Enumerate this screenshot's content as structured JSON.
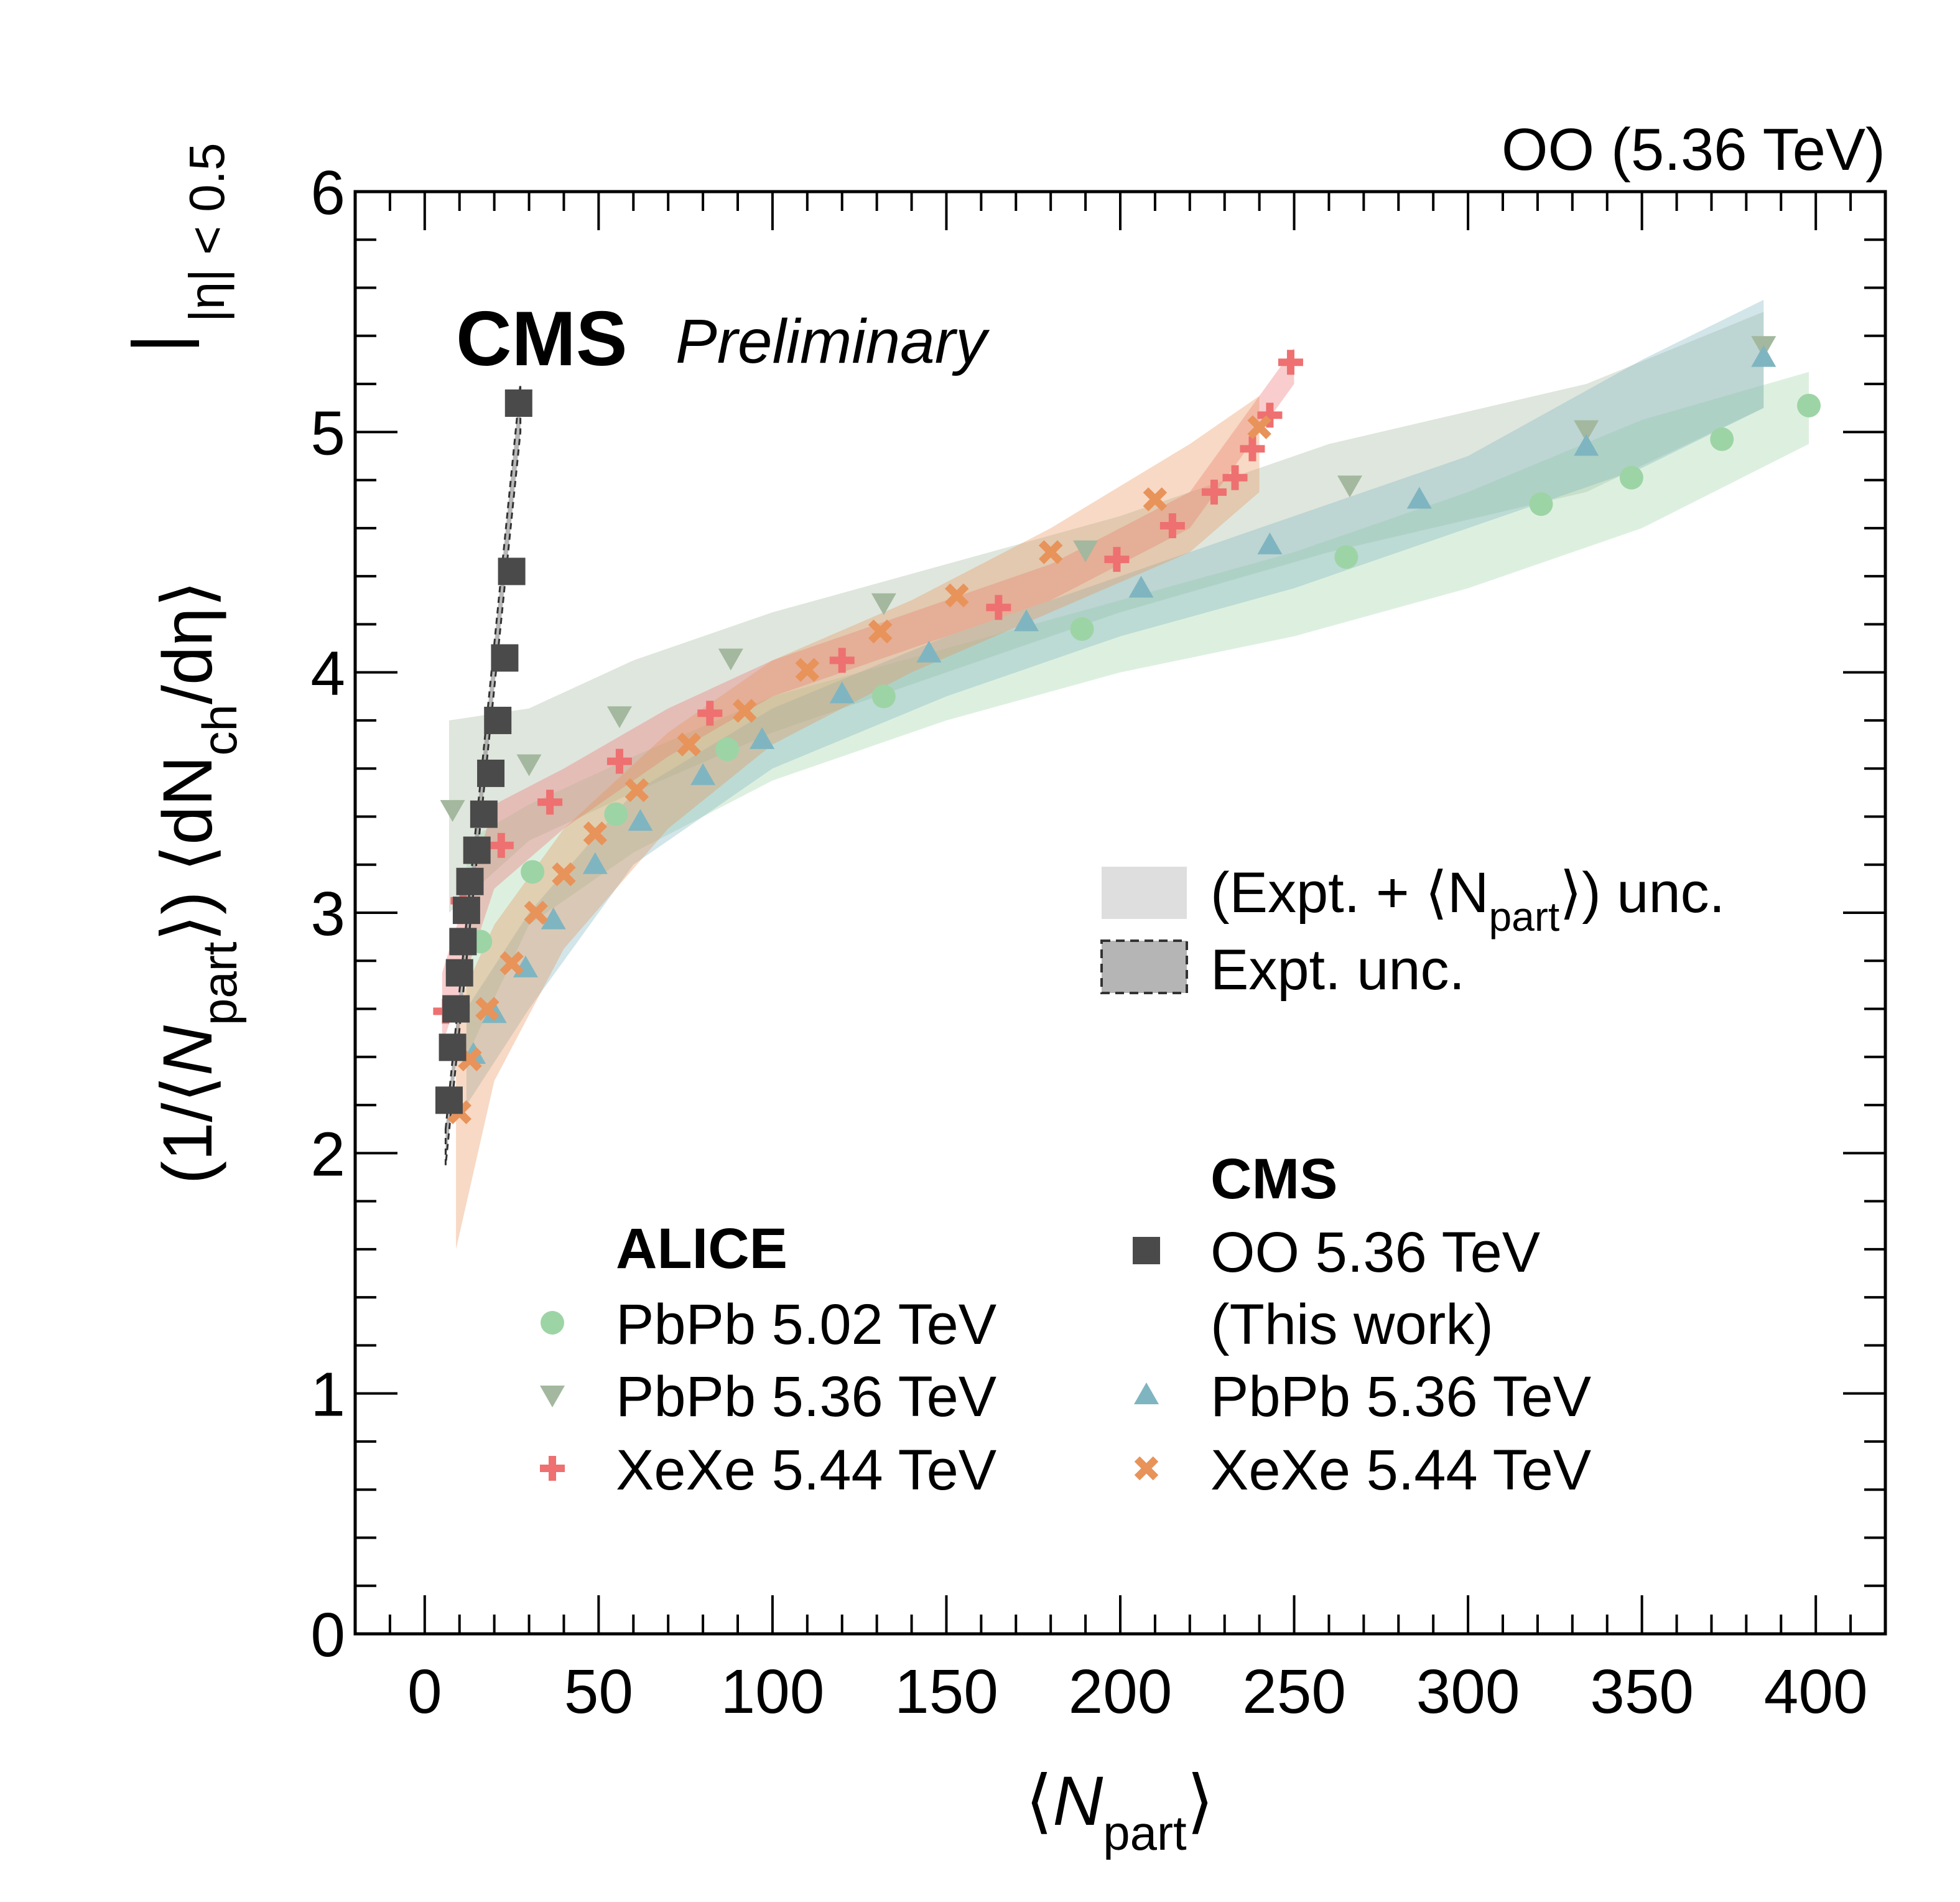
{
  "chart_data": {
    "type": "scatter",
    "title": "",
    "energy_label": "OO (5.36 TeV)",
    "experiment": "CMS",
    "status": "Preliminary",
    "xlabel": {
      "open": "⟨",
      "var": "N",
      "sub": "part",
      "close": "⟩"
    },
    "ylabel": {
      "prefix": "(1/⟨",
      "var": "N",
      "sub": "part",
      "mid": "⟩) ⟨dN",
      "sub2": "ch",
      "end": "/dη⟩",
      "cut": "|η| < 0.5"
    },
    "xlim": [
      -20,
      420
    ],
    "ylim": [
      0,
      6
    ],
    "x_ticks": [
      "0",
      "50",
      "100",
      "150",
      "200",
      "250",
      "300",
      "350",
      "400"
    ],
    "y_ticks": [
      "0",
      "1",
      "2",
      "3",
      "4",
      "5",
      "6"
    ],
    "legend": {
      "unc_total": "(Expt. +   ⟨N",
      "unc_total_sub": "part",
      "unc_total_end": "⟩) unc.",
      "unc_expt": "Expt. unc.",
      "alice_header": "ALICE",
      "cms_header": "CMS",
      "alice_entries": [
        "PbPb 5.02 TeV",
        "PbPb 5.36 TeV",
        "XeXe 5.44 TeV"
      ],
      "cms_entries": [
        "OO 5.36 TeV",
        "(This work)",
        "PbPb 5.36 TeV",
        "XeXe 5.44 TeV"
      ]
    },
    "series": [
      {
        "name": "CMS OO 5.36 TeV",
        "marker": "square",
        "color": "#4a4a4a",
        "x": [
          7,
          8,
          9,
          10,
          11,
          12,
          13,
          15,
          17,
          19,
          21,
          23,
          25,
          27
        ],
        "y": [
          2.22,
          2.44,
          2.6,
          2.75,
          2.88,
          3.01,
          3.13,
          3.26,
          3.41,
          3.58,
          3.8,
          4.06,
          4.42,
          5.12
        ],
        "band": {
          "x": [
            6,
            27.5
          ],
          "lo": [
            1.95,
            5.0
          ],
          "hi": [
            2.1,
            5.2
          ]
        }
      },
      {
        "name": "ALICE PbPb 5.02 TeV",
        "marker": "circle",
        "color": "#9dd4a5",
        "x": [
          16,
          31,
          55,
          87,
          132,
          189,
          265,
          321,
          347,
          373,
          398
        ],
        "y": [
          2.88,
          3.17,
          3.41,
          3.68,
          3.9,
          4.18,
          4.48,
          4.7,
          4.81,
          4.97,
          5.11
        ],
        "band": {
          "x": [
            12,
            30,
            60,
            100,
            150,
            200,
            250,
            300,
            350,
            398
          ],
          "lo": [
            2.4,
            2.95,
            3.25,
            3.55,
            3.8,
            4.0,
            4.15,
            4.35,
            4.6,
            4.95
          ],
          "hi": [
            3.3,
            3.45,
            3.65,
            3.9,
            4.1,
            4.3,
            4.5,
            4.75,
            5.05,
            5.25
          ]
        }
      },
      {
        "name": "ALICE PbPb 5.36 TeV",
        "marker": "triangle-down",
        "color": "#a3b89e",
        "x": [
          8,
          30,
          56,
          88,
          132,
          190,
          266,
          334,
          385
        ],
        "y": [
          3.43,
          3.62,
          3.82,
          4.06,
          4.29,
          4.51,
          4.78,
          5.01,
          5.36
        ],
        "band": {
          "x": [
            7,
            30,
            60,
            100,
            150,
            200,
            260,
            334,
            385
          ],
          "lo": [
            3.0,
            3.3,
            3.5,
            3.75,
            4.0,
            4.25,
            4.5,
            4.75,
            5.1
          ],
          "hi": [
            3.8,
            3.85,
            4.05,
            4.25,
            4.45,
            4.65,
            4.95,
            5.2,
            5.5
          ]
        }
      },
      {
        "name": "ALICE XeXe 5.44 TeV",
        "marker": "plus",
        "color": "#ee7070",
        "x": [
          6,
          11,
          22,
          36,
          56,
          82,
          120,
          165,
          199,
          215,
          227,
          233,
          238,
          243,
          249
        ],
        "y": [
          2.59,
          3.05,
          3.28,
          3.46,
          3.63,
          3.83,
          4.05,
          4.27,
          4.47,
          4.61,
          4.75,
          4.81,
          4.93,
          5.07,
          5.29
        ],
        "band": {
          "x": [
            5,
            20,
            40,
            70,
            100,
            140,
            180,
            220,
            250
          ],
          "lo": [
            2.45,
            3.1,
            3.35,
            3.65,
            3.9,
            4.1,
            4.3,
            4.6,
            5.2
          ],
          "hi": [
            2.75,
            3.45,
            3.6,
            3.85,
            4.05,
            4.25,
            4.45,
            4.75,
            5.35
          ]
        }
      },
      {
        "name": "CMS PbPb 5.36 TeV",
        "marker": "triangle-up",
        "color": "#7fb5c0",
        "x": [
          14,
          20,
          29,
          37,
          49,
          62,
          80,
          97,
          120,
          145,
          173,
          206,
          243,
          286,
          334,
          385
        ],
        "y": [
          2.41,
          2.58,
          2.77,
          2.97,
          3.2,
          3.38,
          3.57,
          3.72,
          3.91,
          4.08,
          4.21,
          4.35,
          4.53,
          4.72,
          4.94,
          5.31
        ],
        "band": {
          "x": [
            12,
            30,
            60,
            100,
            150,
            200,
            250,
            300,
            350,
            385
          ],
          "lo": [
            2.2,
            2.6,
            3.2,
            3.6,
            3.9,
            4.15,
            4.35,
            4.6,
            4.85,
            5.1
          ],
          "hi": [
            2.6,
            3.0,
            3.5,
            3.85,
            4.15,
            4.4,
            4.65,
            4.9,
            5.3,
            5.55
          ]
        }
      },
      {
        "name": "CMS XeXe 5.44 TeV",
        "marker": "x",
        "color": "#e8935a",
        "x": [
          10,
          13,
          18,
          25,
          32,
          40,
          49,
          61,
          76,
          92,
          110,
          131,
          153,
          180,
          210,
          240
        ],
        "y": [
          2.17,
          2.39,
          2.6,
          2.79,
          3.0,
          3.16,
          3.33,
          3.51,
          3.7,
          3.84,
          4.01,
          4.17,
          4.32,
          4.5,
          4.72,
          5.02
        ],
        "band": {
          "x": [
            9,
            20,
            40,
            70,
            100,
            140,
            180,
            220,
            240
          ],
          "lo": [
            1.6,
            2.3,
            2.85,
            3.35,
            3.7,
            4.0,
            4.25,
            4.5,
            4.75
          ],
          "hi": [
            2.6,
            2.95,
            3.35,
            3.75,
            4.05,
            4.3,
            4.6,
            4.95,
            5.15
          ]
        }
      }
    ]
  }
}
